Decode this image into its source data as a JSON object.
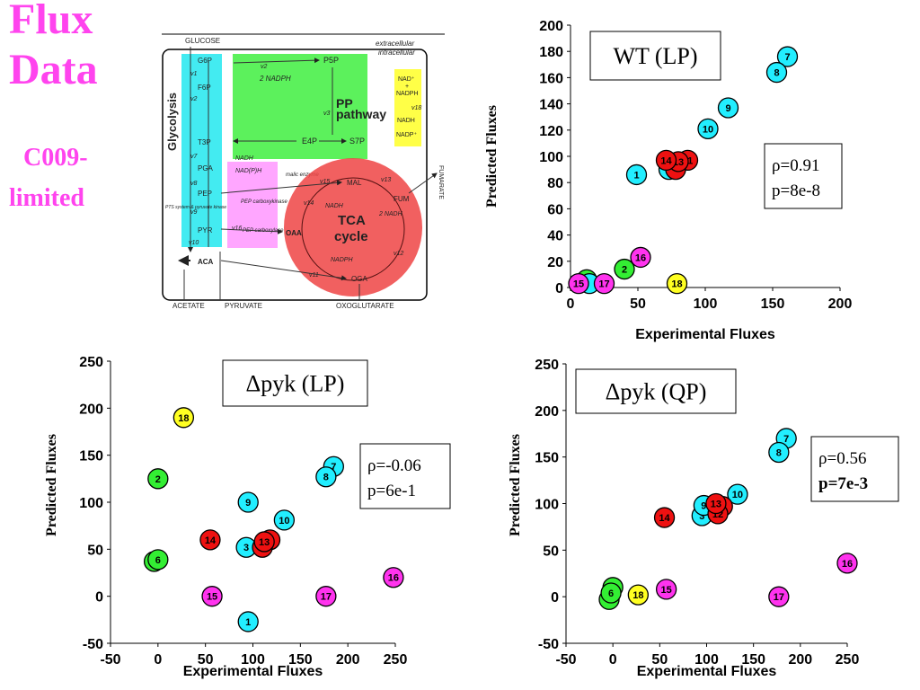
{
  "page": {
    "title_line1": "Flux",
    "title_line2": "Data",
    "subtitle_line1": "C009-",
    "subtitle_line2": "limited"
  },
  "colors": {
    "magenta": "#ff33ee",
    "green": "#33ee33",
    "cyan": "#22eeff",
    "red": "#ee1111",
    "yellow": "#ffff22"
  },
  "diagram": {
    "labels": {
      "glucose": "GLUCOSE",
      "extracellular": "extracellular",
      "intracellular": "intracellular",
      "glycolysis": "Glycolysis",
      "g6p": "G6P",
      "f6p": "F6P",
      "t3p": "T3P",
      "pga": "PGA",
      "pep": "PEP",
      "pyr": "PYR",
      "aca": "ACA",
      "v1": "v1",
      "v2": "v2",
      "v3": "v3",
      "v7": "v7",
      "v8": "v8",
      "v9": "v9",
      "v10": "v10",
      "p5p": "P5P",
      "e4p": "E4P",
      "s7p": "S7P",
      "nadph2": "2 NADPH",
      "pp": "PP",
      "pathway": "pathway",
      "nad": "NAD⁺",
      "plus": "+",
      "nadph_box": "NADPH",
      "v18": "v18",
      "nadh_box": "NADH",
      "nadp": "NADP⁺",
      "nadh_t3p": "NADH",
      "nadph_pep": "NAD(P)H",
      "malic": "malic enzyme",
      "pep_carboxykinase": "PEP carboxykinase",
      "pep_carboxylase": "PEP carboxylase",
      "pts": "PTS system & pyruvate kinase",
      "mal": "MAL",
      "fum": "FUM",
      "oaa": "OAA",
      "oga": "OGA",
      "tca": "TCA",
      "cycle": "cycle",
      "v13": "v13",
      "v14": "v14",
      "v15": "v15",
      "v16": "v16",
      "v12": "v12",
      "v11": "v11",
      "nadh_tca": "NADH",
      "nadh2_tca": "2 NADH",
      "nadph_tca": "NADPH",
      "fumarate": "FUMARATE",
      "acetate": "ACETATE",
      "pyruvate": "PYRUVATE",
      "oxoglutarate": "OXOGLUTARATE"
    }
  },
  "chart_data": [
    {
      "type": "scatter",
      "box_label": "WT (LP)",
      "stat_rho": "ρ=0.91",
      "stat_p": "p=8e-8",
      "stat_p_bold": false,
      "xlabel": "Experimental Fluxes",
      "ylabel": "Predicted Fluxes",
      "xlim": [
        0,
        200
      ],
      "ylim": [
        0,
        200
      ],
      "xticks": [
        "0",
        "50",
        "100",
        "150",
        "200"
      ],
      "yticks": [
        "0",
        "20",
        "40",
        "60",
        "80",
        "100",
        "120",
        "140",
        "160",
        "180",
        "200"
      ],
      "points": [
        {
          "label": "1",
          "x": 49,
          "y": 86,
          "color": "cyan"
        },
        {
          "label": "",
          "x": 12,
          "y": 6,
          "color": "green"
        },
        {
          "label": "2",
          "x": 40,
          "y": 14,
          "color": "green"
        },
        {
          "label": "",
          "x": 14,
          "y": 3,
          "color": "cyan"
        },
        {
          "label": "",
          "x": 73,
          "y": 90,
          "color": "cyan"
        },
        {
          "label": "7",
          "x": 161,
          "y": 176,
          "color": "cyan"
        },
        {
          "label": "8",
          "x": 153,
          "y": 164,
          "color": "cyan"
        },
        {
          "label": "9",
          "x": 117,
          "y": 137,
          "color": "cyan"
        },
        {
          "label": "10",
          "x": 102,
          "y": 121,
          "color": "cyan"
        },
        {
          "label": "11",
          "x": 87,
          "y": 97,
          "color": "red"
        },
        {
          "label": "",
          "x": 78,
          "y": 90,
          "color": "red"
        },
        {
          "label": "13",
          "x": 80,
          "y": 96,
          "color": "red"
        },
        {
          "label": "14",
          "x": 71,
          "y": 97,
          "color": "red"
        },
        {
          "label": "15",
          "x": 6,
          "y": 3,
          "color": "magenta"
        },
        {
          "label": "16",
          "x": 52,
          "y": 23,
          "color": "magenta"
        },
        {
          "label": "17",
          "x": 25,
          "y": 3,
          "color": "magenta"
        },
        {
          "label": "18",
          "x": 79,
          "y": 3,
          "color": "yellow"
        }
      ]
    },
    {
      "type": "scatter",
      "box_label": "Δpyk (LP)",
      "stat_rho": "ρ=-0.06",
      "stat_p": "p=6e-1",
      "stat_p_bold": false,
      "xlabel": "Experimental Fluxes",
      "ylabel": "Predicted Fluxes",
      "xlim": [
        -50,
        250
      ],
      "ylim": [
        -50,
        250
      ],
      "xticks": [
        "-50",
        "0",
        "50",
        "100",
        "150",
        "200",
        "250"
      ],
      "yticks": [
        "-50",
        "0",
        "50",
        "100",
        "150",
        "200",
        "250"
      ],
      "points": [
        {
          "label": "1",
          "x": 95,
          "y": -27,
          "color": "cyan"
        },
        {
          "label": "2",
          "x": 0,
          "y": 125,
          "color": "green"
        },
        {
          "label": "3",
          "x": 93,
          "y": 52,
          "color": "cyan"
        },
        {
          "label": "",
          "x": -4,
          "y": 37,
          "color": "green"
        },
        {
          "label": "6",
          "x": 0,
          "y": 39,
          "color": "green"
        },
        {
          "label": "7",
          "x": 185,
          "y": 138,
          "color": "cyan"
        },
        {
          "label": "8",
          "x": 177,
          "y": 127,
          "color": "cyan"
        },
        {
          "label": "9",
          "x": 95,
          "y": 100,
          "color": "cyan"
        },
        {
          "label": "10",
          "x": 133,
          "y": 81,
          "color": "cyan"
        },
        {
          "label": "",
          "x": 118,
          "y": 60,
          "color": "red"
        },
        {
          "label": "",
          "x": 110,
          "y": 52,
          "color": "red"
        },
        {
          "label": "13",
          "x": 112,
          "y": 58,
          "color": "red"
        },
        {
          "label": "14",
          "x": 55,
          "y": 60,
          "color": "red"
        },
        {
          "label": "15",
          "x": 57,
          "y": 0,
          "color": "magenta"
        },
        {
          "label": "16",
          "x": 248,
          "y": 20,
          "color": "magenta"
        },
        {
          "label": "17",
          "x": 177,
          "y": 0,
          "color": "magenta"
        },
        {
          "label": "18",
          "x": 27,
          "y": 190,
          "color": "yellow"
        }
      ]
    },
    {
      "type": "scatter",
      "box_label": "Δpyk (QP)",
      "stat_rho": "ρ=0.56",
      "stat_p": "p=7e-3",
      "stat_p_bold": true,
      "xlabel": "Experimental Fluxes",
      "ylabel": "Predicted Fluxes",
      "xlim": [
        -50,
        250
      ],
      "ylim": [
        -50,
        250
      ],
      "xticks": [
        "-50",
        "0",
        "50",
        "100",
        "150",
        "200",
        "250"
      ],
      "yticks": [
        "-50",
        "0",
        "50",
        "100",
        "150",
        "200",
        "250"
      ],
      "points": [
        {
          "label": "",
          "x": -4,
          "y": -3,
          "color": "green"
        },
        {
          "label": "",
          "x": 0,
          "y": 10,
          "color": "green"
        },
        {
          "label": "6",
          "x": -2,
          "y": 4,
          "color": "green"
        },
        {
          "label": "3",
          "x": 95,
          "y": 87,
          "color": "cyan"
        },
        {
          "label": "9",
          "x": 97,
          "y": 98,
          "color": "cyan"
        },
        {
          "label": "7",
          "x": 185,
          "y": 170,
          "color": "cyan"
        },
        {
          "label": "8",
          "x": 177,
          "y": 155,
          "color": "cyan"
        },
        {
          "label": "10",
          "x": 133,
          "y": 110,
          "color": "cyan"
        },
        {
          "label": "",
          "x": 117,
          "y": 97,
          "color": "red"
        },
        {
          "label": "12",
          "x": 112,
          "y": 89,
          "color": "red"
        },
        {
          "label": "13",
          "x": 110,
          "y": 100,
          "color": "red"
        },
        {
          "label": "14",
          "x": 55,
          "y": 85,
          "color": "red"
        },
        {
          "label": "15",
          "x": 57,
          "y": 8,
          "color": "magenta"
        },
        {
          "label": "16",
          "x": 250,
          "y": 36,
          "color": "magenta"
        },
        {
          "label": "17",
          "x": 177,
          "y": 0,
          "color": "magenta"
        },
        {
          "label": "18",
          "x": 27,
          "y": 2,
          "color": "yellow"
        }
      ]
    }
  ]
}
